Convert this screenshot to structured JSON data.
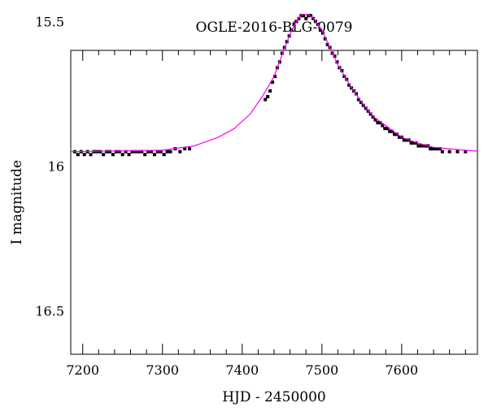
{
  "chart_data": {
    "type": "scatter",
    "title": "OGLE-2016-BLG-0079",
    "xlabel": "HJD - 2450000",
    "ylabel": "I magnitude",
    "xlim": [
      7185,
      7695
    ],
    "ylim": [
      16.65,
      15.6
    ],
    "y_inverted": true,
    "xticks": [
      7200,
      7300,
      7400,
      7500,
      7600
    ],
    "yticks": [
      15.5,
      16,
      16.5
    ],
    "ytick_labels": [
      "15.5",
      "16",
      "16.5"
    ],
    "grid": false,
    "legend": "none",
    "colors": {
      "data": "#000000",
      "model": "#ff00ff"
    },
    "series": [
      {
        "kind": "points",
        "points": [
          [
            7190,
            15.95
          ],
          [
            7194,
            15.96
          ],
          [
            7198,
            15.95
          ],
          [
            7202,
            15.96
          ],
          [
            7206,
            15.95
          ],
          [
            7210,
            15.96
          ],
          [
            7214,
            15.95
          ],
          [
            7218,
            15.95
          ],
          [
            7222,
            15.95
          ],
          [
            7226,
            15.96
          ],
          [
            7230,
            15.95
          ],
          [
            7234,
            15.95
          ],
          [
            7238,
            15.96
          ],
          [
            7242,
            15.95
          ],
          [
            7246,
            15.95
          ],
          [
            7250,
            15.96
          ],
          [
            7254,
            15.95
          ],
          [
            7258,
            15.96
          ],
          [
            7262,
            15.95
          ],
          [
            7266,
            15.95
          ],
          [
            7270,
            15.95
          ],
          [
            7274,
            15.95
          ],
          [
            7278,
            15.96
          ],
          [
            7282,
            15.95
          ],
          [
            7286,
            15.95
          ],
          [
            7290,
            15.96
          ],
          [
            7294,
            15.95
          ],
          [
            7298,
            15.95
          ],
          [
            7302,
            15.96
          ],
          [
            7306,
            15.95
          ],
          [
            7310,
            15.95
          ],
          [
            7316,
            15.94
          ],
          [
            7322,
            15.95
          ],
          [
            7328,
            15.94
          ],
          [
            7334,
            15.94
          ],
          [
            7429,
            15.77
          ],
          [
            7432,
            15.76
          ],
          [
            7435,
            15.74
          ],
          [
            7438,
            15.71
          ],
          [
            7441,
            15.69
          ],
          [
            7444,
            15.66
          ],
          [
            7447,
            15.64
          ],
          [
            7450,
            15.61
          ],
          [
            7453,
            15.59
          ],
          [
            7456,
            15.57
          ],
          [
            7459,
            15.55
          ],
          [
            7462,
            15.53
          ],
          [
            7465,
            15.51
          ],
          [
            7468,
            15.5
          ],
          [
            7471,
            15.49
          ],
          [
            7474,
            15.48
          ],
          [
            7477,
            15.48
          ],
          [
            7480,
            15.49
          ],
          [
            7483,
            15.48
          ],
          [
            7486,
            15.48
          ],
          [
            7489,
            15.49
          ],
          [
            7492,
            15.5
          ],
          [
            7495,
            15.51
          ],
          [
            7498,
            15.53
          ],
          [
            7501,
            15.54
          ],
          [
            7504,
            15.56
          ],
          [
            7507,
            15.58
          ],
          [
            7510,
            15.59
          ],
          [
            7513,
            15.61
          ],
          [
            7516,
            15.62
          ],
          [
            7519,
            15.64
          ],
          [
            7522,
            15.66
          ],
          [
            7525,
            15.67
          ],
          [
            7528,
            15.69
          ],
          [
            7531,
            15.7
          ],
          [
            7534,
            15.72
          ],
          [
            7537,
            15.73
          ],
          [
            7540,
            15.74
          ],
          [
            7543,
            15.75
          ],
          [
            7546,
            15.77
          ],
          [
            7549,
            15.78
          ],
          [
            7552,
            15.79
          ],
          [
            7555,
            15.8
          ],
          [
            7558,
            15.81
          ],
          [
            7561,
            15.82
          ],
          [
            7564,
            15.83
          ],
          [
            7567,
            15.84
          ],
          [
            7570,
            15.85
          ],
          [
            7573,
            15.85
          ],
          [
            7576,
            15.86
          ],
          [
            7579,
            15.87
          ],
          [
            7582,
            15.87
          ],
          [
            7585,
            15.88
          ],
          [
            7588,
            15.88
          ],
          [
            7591,
            15.89
          ],
          [
            7594,
            15.89
          ],
          [
            7597,
            15.9
          ],
          [
            7600,
            15.9
          ],
          [
            7603,
            15.91
          ],
          [
            7606,
            15.91
          ],
          [
            7609,
            15.91
          ],
          [
            7612,
            15.92
          ],
          [
            7615,
            15.92
          ],
          [
            7618,
            15.92
          ],
          [
            7621,
            15.93
          ],
          [
            7624,
            15.93
          ],
          [
            7627,
            15.93
          ],
          [
            7630,
            15.93
          ],
          [
            7633,
            15.93
          ],
          [
            7636,
            15.94
          ],
          [
            7639,
            15.94
          ],
          [
            7642,
            15.94
          ],
          [
            7645,
            15.94
          ],
          [
            7648,
            15.94
          ],
          [
            7651,
            15.95
          ],
          [
            7660,
            15.95
          ],
          [
            7670,
            15.95
          ],
          [
            7680,
            15.95
          ]
        ]
      },
      {
        "kind": "model-curve",
        "points": [
          [
            7185,
            15.95
          ],
          [
            7300,
            15.945
          ],
          [
            7340,
            15.93
          ],
          [
            7370,
            15.9
          ],
          [
            7390,
            15.87
          ],
          [
            7410,
            15.82
          ],
          [
            7425,
            15.76
          ],
          [
            7440,
            15.69
          ],
          [
            7452,
            15.6
          ],
          [
            7462,
            15.53
          ],
          [
            7470,
            15.49
          ],
          [
            7476,
            15.476
          ],
          [
            7482,
            15.476
          ],
          [
            7490,
            15.49
          ],
          [
            7500,
            15.53
          ],
          [
            7510,
            15.59
          ],
          [
            7520,
            15.65
          ],
          [
            7535,
            15.72
          ],
          [
            7550,
            15.78
          ],
          [
            7565,
            15.83
          ],
          [
            7580,
            15.86
          ],
          [
            7600,
            15.9
          ],
          [
            7620,
            15.92
          ],
          [
            7640,
            15.935
          ],
          [
            7660,
            15.94
          ],
          [
            7680,
            15.945
          ],
          [
            7695,
            15.948
          ]
        ]
      }
    ]
  }
}
